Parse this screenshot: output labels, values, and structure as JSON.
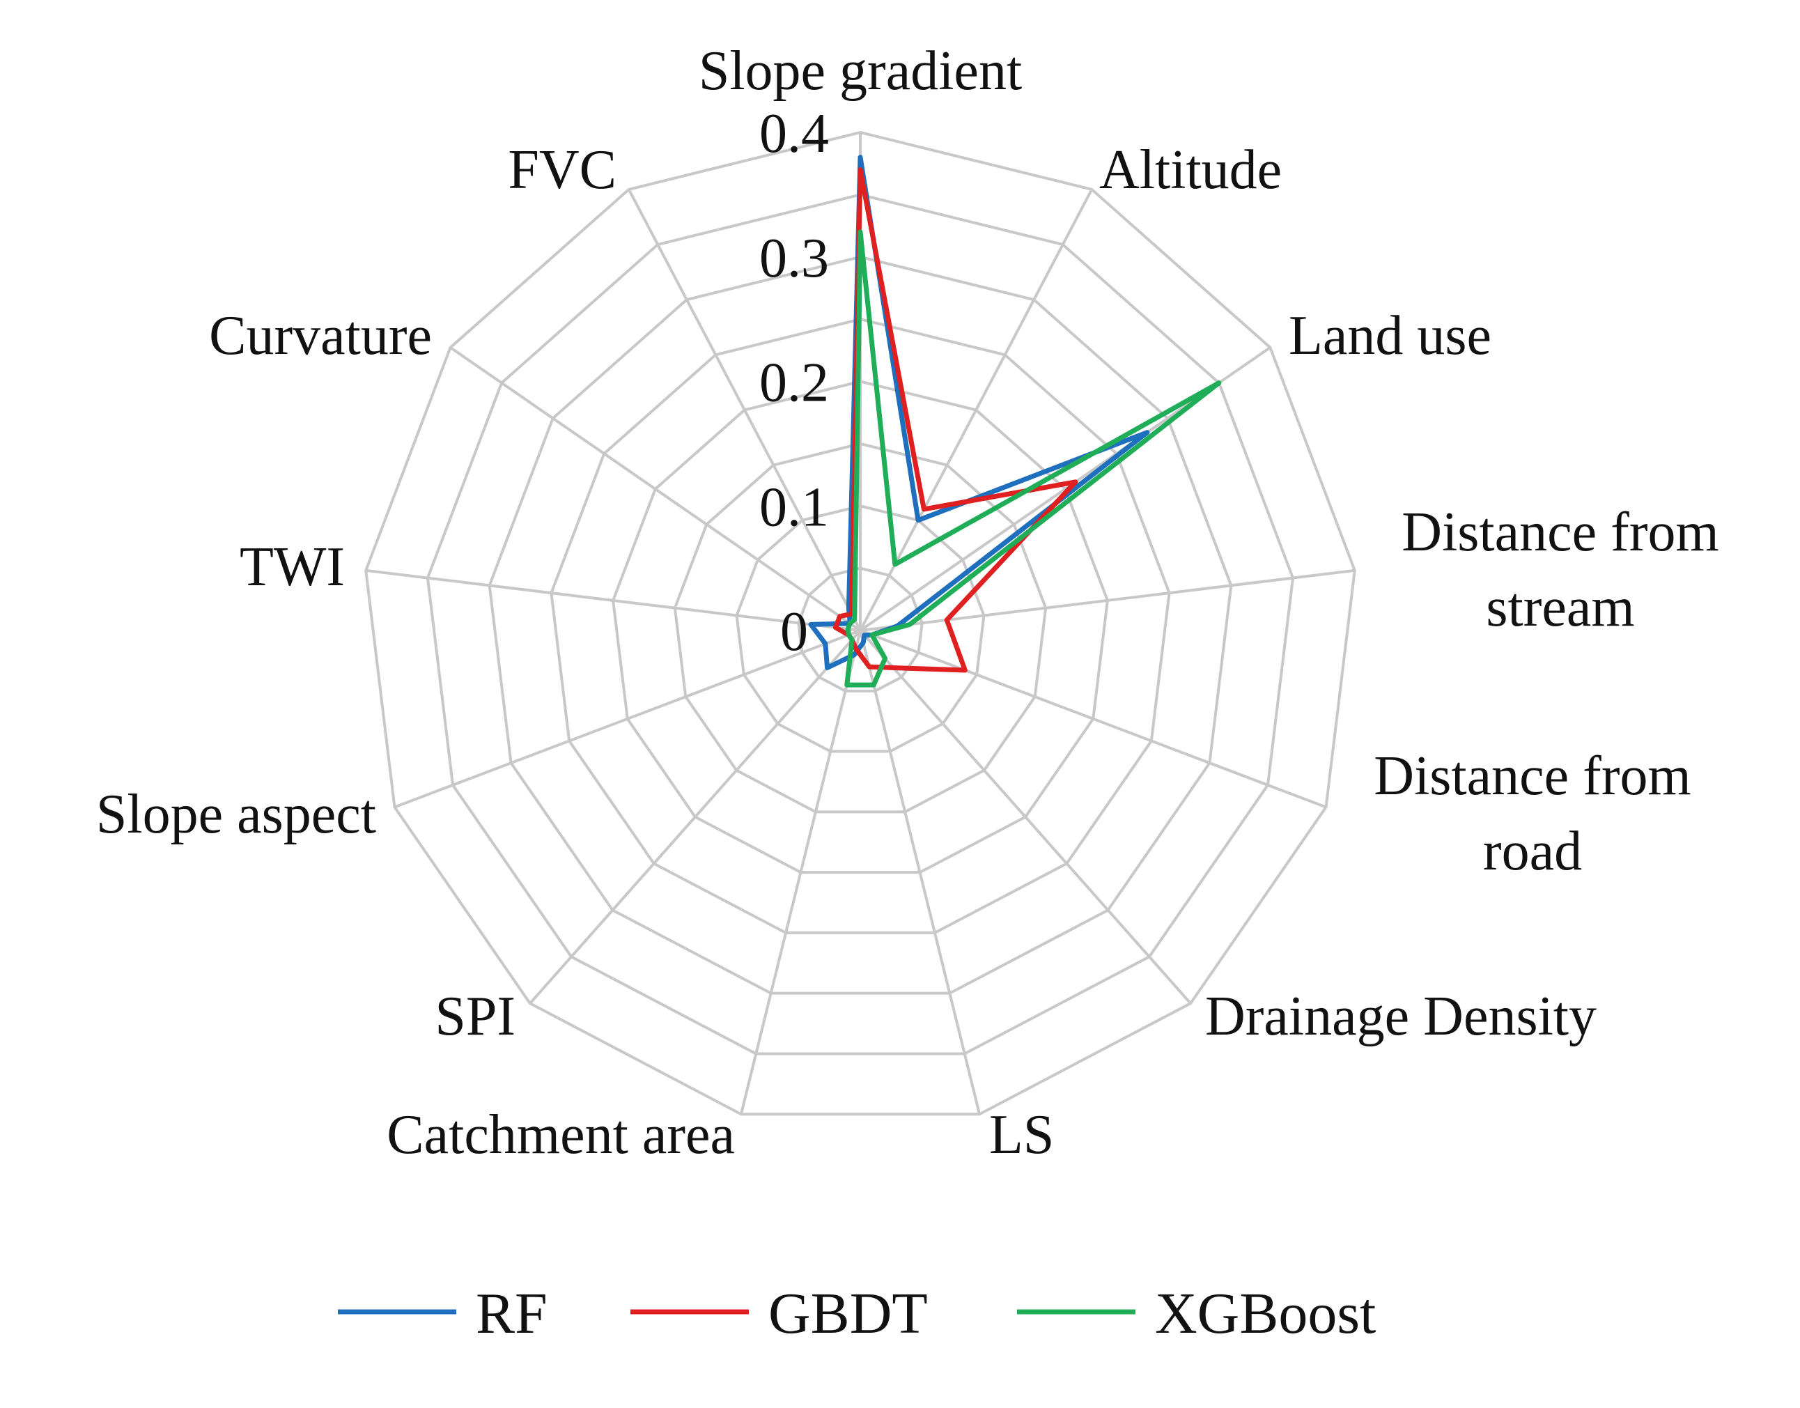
{
  "chart_data": {
    "type": "radar",
    "categories": [
      [
        "Slope gradient"
      ],
      [
        "Altitude"
      ],
      [
        "Land use"
      ],
      [
        "Distance from",
        "stream"
      ],
      [
        "Distance from",
        "road"
      ],
      [
        "Drainage Density"
      ],
      [
        "LS"
      ],
      [
        "Catchment area"
      ],
      [
        "SPI"
      ],
      [
        "Slope aspect"
      ],
      [
        "TWI"
      ],
      [
        "Curvature"
      ],
      [
        "FVC"
      ]
    ],
    "rlim": [
      0,
      0.4
    ],
    "ticks": [
      0,
      0.1,
      0.2,
      0.3,
      0.4
    ],
    "tick_labels": [
      "0",
      "0.1",
      "0.2",
      "0.3",
      "0.4"
    ],
    "grid": true,
    "legend_position": "bottom",
    "series": [
      {
        "name": "RF",
        "color": "#1f6fbf",
        "values": [
          0.38,
          0.1,
          0.28,
          0.03,
          0.01,
          0.005,
          0.01,
          0.02,
          0.04,
          0.03,
          0.04,
          0.01,
          0.02
        ]
      },
      {
        "name": "GBDT",
        "color": "#e02020",
        "values": [
          0.37,
          0.11,
          0.21,
          0.07,
          0.09,
          0.04,
          0.03,
          0.015,
          0.01,
          0.01,
          0.02,
          0.02,
          0.015
        ]
      },
      {
        "name": "XGBoost",
        "color": "#1fae57",
        "values": [
          0.32,
          0.06,
          0.35,
          0.04,
          0.01,
          0.03,
          0.045,
          0.045,
          0.01,
          0.01,
          0.01,
          0.01,
          0.01
        ]
      }
    ]
  }
}
